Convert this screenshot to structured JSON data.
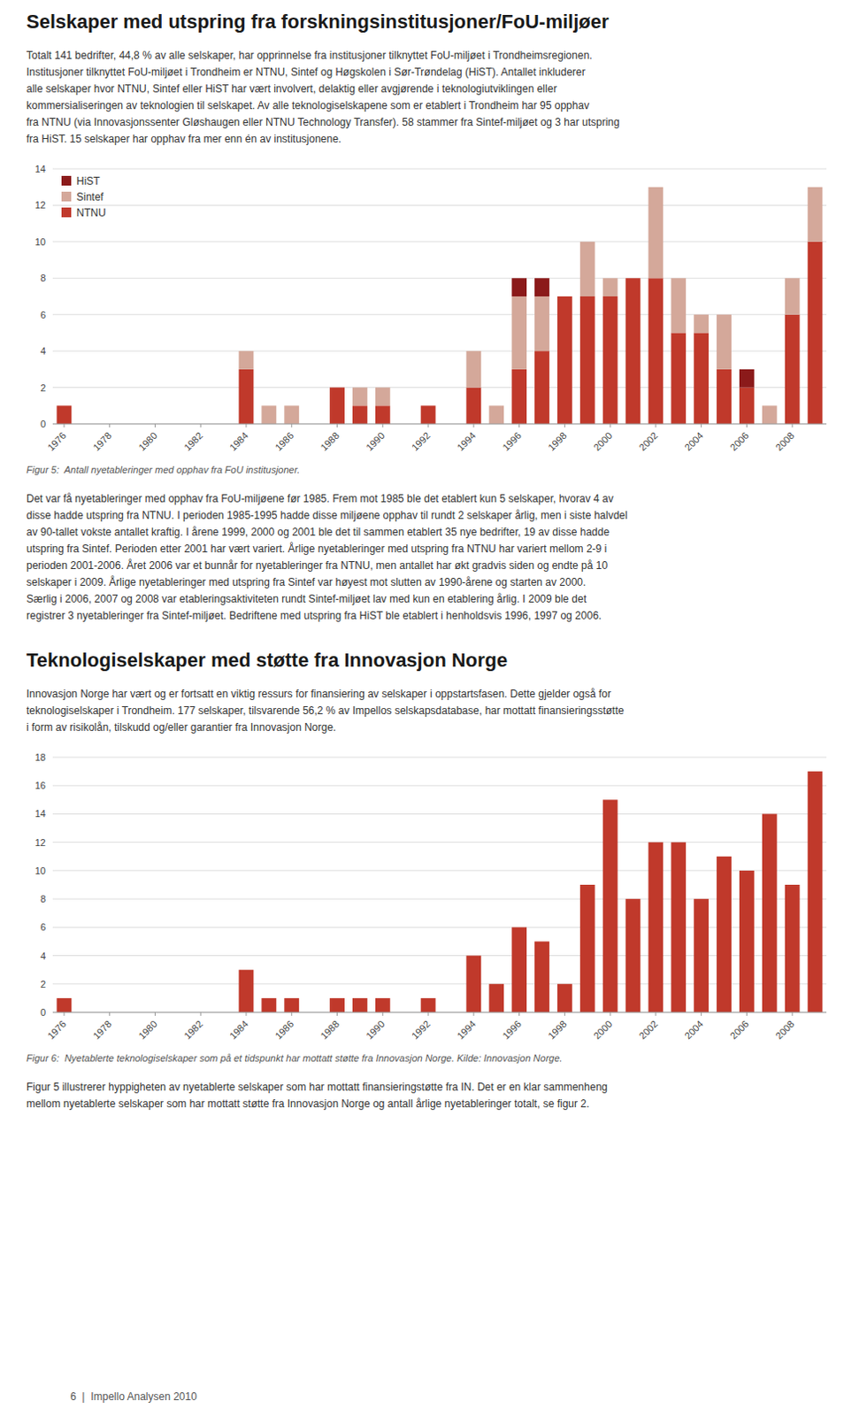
{
  "page": {
    "headings": [
      "Selskaper med utspring fra forskningsinstitusjoner/FoU-miljøer",
      "Teknologiselskaper med støtte fra Innovasjon Norge"
    ],
    "paragraphs": [
      [
        "Totalt 141 bedrifter, 44,8 % av alle selskaper, har opprinnelse fra institusjoner tilknyttet FoU-miljøet i Trondheimsregionen.",
        "Institusjoner tilknyttet FoU-miljøet i Trondheim er NTNU, Sintef og Høgskolen i Sør-Trøndelag (HiST). Antallet inkluderer",
        "alle selskaper hvor NTNU, Sintef eller HiST har vært involvert, delaktig eller avgjørende i teknologiutviklingen eller",
        "kommersialiseringen av teknologien til selskapet. Av alle teknologiselskapene som er etablert i Trondheim har 95 opphav",
        "fra NTNU (via Innovasjonssenter Gløshaugen eller NTNU Technology Transfer). 58 stammer fra Sintef-miljøet og 3 har utspring",
        "fra HiST. 15 selskaper har opphav fra mer enn én av institusjonene."
      ],
      [
        "Det var få nyetableringer med opphav fra FoU-miljøene før 1985. Frem mot 1985 ble det etablert kun 5 selskaper, hvorav 4 av",
        "disse hadde utspring fra NTNU. I perioden 1985-1995 hadde disse miljøene opphav til rundt 2 selskaper årlig, men i siste halvdel",
        "av 90-tallet vokste antallet kraftig. I årene 1999, 2000 og 2001 ble det til sammen etablert 35 nye bedrifter, 19 av disse hadde",
        "utspring fra Sintef. Perioden etter 2001 har vært variert. Årlige nyetableringer med utspring fra NTNU har variert mellom 2-9 i",
        "perioden 2001-2006. Året 2006 var et bunnår for nyetableringer fra NTNU, men antallet har økt gradvis siden og endte på 10",
        "selskaper i 2009. Årlige nyetableringer med utspring fra Sintef var høyest mot slutten av 1990-årene og starten av 2000.",
        "Særlig i 2006, 2007 og 2008 var etableringsaktiviteten rundt Sintef-miljøet lav med kun en etablering årlig. I 2009 ble det",
        "registrer 3 nyetableringer fra Sintef-miljøet. Bedriftene med utspring fra HiST ble etablert i henholdsvis 1996, 1997 og 2006."
      ],
      [
        "Innovasjon Norge har vært og er fortsatt en viktig ressurs for finansiering av selskaper i oppstartsfasen. Dette gjelder også for",
        "teknologiselskaper i Trondheim. 177 selskaper, tilsvarende 56,2 % av Impellos selskapsdatabase, har mottatt finansieringsstøtte",
        "i form av risikolån, tilskudd og/eller garantier fra Innovasjon Norge."
      ],
      [
        "Figur 5 illustrerer hyppigheten av nyetablerte selskaper som har mottatt finansieringstøtte fra IN. Det er en klar sammenheng",
        "mellom nyetablerte selskaper som har mottatt støtte fra Innovasjon Norge og antall årlige nyetableringer totalt, se figur 2."
      ]
    ],
    "footer": "6  |  Impello Analysen 2010"
  },
  "chart_data": [
    {
      "type": "bar",
      "stacked": true,
      "title": "Figur 5:  Antall nyetableringer med opphav fra FoU institusjoner.",
      "categories": [
        "1976",
        null,
        "1978",
        null,
        "1980",
        null,
        "1982",
        null,
        "1984",
        null,
        "1986",
        null,
        "1988",
        null,
        "1990",
        null,
        "1992",
        null,
        "1994",
        null,
        "1996",
        null,
        "1998",
        null,
        "2000",
        null,
        "2002",
        null,
        "2004",
        null,
        "2006",
        null,
        "2008",
        null
      ],
      "series": [
        {
          "name": "NTNU",
          "color": "#c0392b",
          "values": [
            1,
            0,
            0,
            0,
            0,
            0,
            0,
            0,
            3,
            0,
            0,
            0,
            2,
            1,
            1,
            0,
            1,
            0,
            2,
            0,
            3,
            4,
            7,
            7,
            7,
            8,
            8,
            5,
            5,
            3,
            2,
            0,
            6,
            10
          ]
        },
        {
          "name": "Sintef",
          "color": "#d4a89a",
          "values": [
            0,
            0,
            0,
            0,
            0,
            0,
            0,
            0,
            1,
            1,
            1,
            0,
            0,
            1,
            1,
            0,
            0,
            0,
            2,
            1,
            4,
            3,
            0,
            3,
            1,
            0,
            5,
            3,
            1,
            3,
            0,
            1,
            2,
            3
          ]
        },
        {
          "name": "HiST",
          "color": "#8b1a1a",
          "values": [
            0,
            0,
            0,
            0,
            0,
            0,
            0,
            0,
            0,
            0,
            0,
            0,
            0,
            0,
            0,
            0,
            0,
            0,
            0,
            0,
            1,
            1,
            0,
            0,
            0,
            0,
            0,
            0,
            0,
            0,
            1,
            0,
            0,
            0
          ]
        }
      ],
      "ylim": [
        0,
        14
      ],
      "yticks": [
        0,
        2,
        4,
        6,
        8,
        10,
        12,
        14
      ],
      "grid": true,
      "legend": "upper-left"
    },
    {
      "type": "bar",
      "title": "Figur 6:  Nyetablerte teknologiselskaper som på et tidspunkt har mottatt støtte fra Innovasjon Norge. Kilde: Innovasjon Norge.",
      "categories": [
        "1976",
        null,
        "1978",
        null,
        "1980",
        null,
        "1982",
        null,
        "1984",
        null,
        "1986",
        null,
        "1988",
        null,
        "1990",
        null,
        "1992",
        null,
        "1994",
        null,
        "1996",
        null,
        "1998",
        null,
        "2000",
        null,
        "2002",
        null,
        "2004",
        null,
        "2006",
        null,
        "2008",
        null
      ],
      "values": [
        1,
        0,
        0,
        0,
        0,
        0,
        0,
        0,
        3,
        1,
        1,
        0,
        1,
        1,
        1,
        0,
        1,
        0,
        4,
        2,
        6,
        5,
        2,
        9,
        15,
        8,
        12,
        12,
        8,
        11,
        10,
        14,
        9,
        17
      ],
      "color": "#c0392b",
      "ylim": [
        0,
        18
      ],
      "yticks": [
        0,
        2,
        4,
        6,
        8,
        10,
        12,
        14,
        16,
        18
      ],
      "grid": true
    }
  ]
}
